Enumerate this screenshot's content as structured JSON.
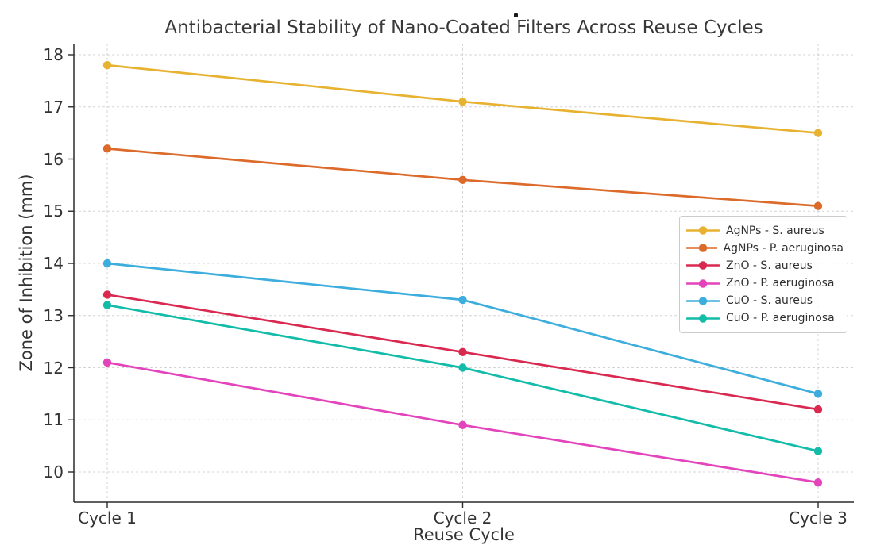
{
  "chart_data": {
    "type": "line",
    "title": "Antibacterial Stability of Nano-Coated Filters Across Reuse Cycles",
    "xlabel": "Reuse Cycle",
    "ylabel": "Zone of Inhibition (mm)",
    "categories": [
      "Cycle 1",
      "Cycle 2",
      "Cycle 3"
    ],
    "y_ticks": [
      10,
      11,
      12,
      13,
      14,
      15,
      16,
      17,
      18
    ],
    "ylim": [
      9.4,
      18.2
    ],
    "grid": true,
    "grid_style": "dashed",
    "legend_position": "center right",
    "series": [
      {
        "name": "AgNPs - S. aureus",
        "color": "#E8B231",
        "values": [
          17.8,
          17.1,
          16.5
        ]
      },
      {
        "name": "AgNPs - P. aeruginosa",
        "color": "#DB6A2B",
        "values": [
          16.2,
          15.6,
          15.1
        ]
      },
      {
        "name": "ZnO - S. aureus",
        "color": "#D92950",
        "values": [
          13.4,
          12.3,
          11.2
        ]
      },
      {
        "name": "ZnO - P. aeruginosa",
        "color": "#E343BB",
        "values": [
          12.1,
          10.9,
          9.8
        ]
      },
      {
        "name": "CuO - S. aureus",
        "color": "#3CADDC",
        "values": [
          14.0,
          13.3,
          11.5
        ]
      },
      {
        "name": "CuO - P. aeruginosa",
        "color": "#12BCA9",
        "values": [
          13.2,
          12.0,
          10.4
        ]
      }
    ],
    "colors": {
      "spine": "#2b2b2b",
      "grid": "#d4d4d4",
      "tick_text": "#333333",
      "title_text": "#383838"
    }
  },
  "artifacts": {
    "stray_dot": "."
  }
}
